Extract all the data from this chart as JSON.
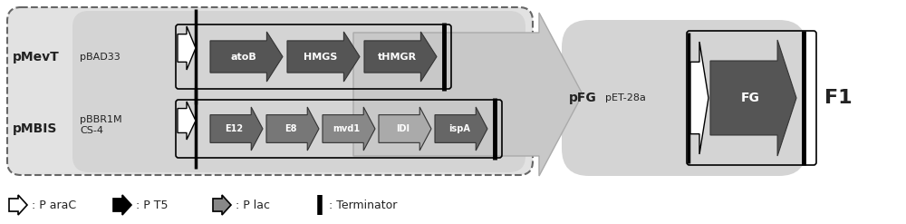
{
  "text_color": "#222222",
  "dark_gray_gene": "#555555",
  "mid_gray_gene": "#888888",
  "light_gray_gene": "#aaaaaa",
  "bg_dashed": "#e0e0e0",
  "bg_inner": "#d0d0d0",
  "bg_right": "#d0d0d0",
  "big_arrow_color": "#c8c8c8",
  "label_F1": "F1",
  "label_pFG": "pFG",
  "label_pMevT": "pMevT",
  "label_pMBIS": "pMBIS",
  "label_pBAD33": "pBAD33",
  "label_pBBR1M": "pBBR1M\nCS-4",
  "label_pET28a": "pET-28a",
  "top_genes": [
    "atoB",
    "HMGS",
    "tHMGR"
  ],
  "top_gene_colors": [
    "#555555",
    "#555555",
    "#555555"
  ],
  "bot_genes": [
    "E12",
    "E8",
    "mvd1",
    "IDI",
    "ispA"
  ],
  "bot_gene_colors": [
    "#666666",
    "#777777",
    "#888888",
    "#aaaaaa",
    "#666666"
  ],
  "fg_gene": "FG",
  "fg_gene_color": "#555555"
}
